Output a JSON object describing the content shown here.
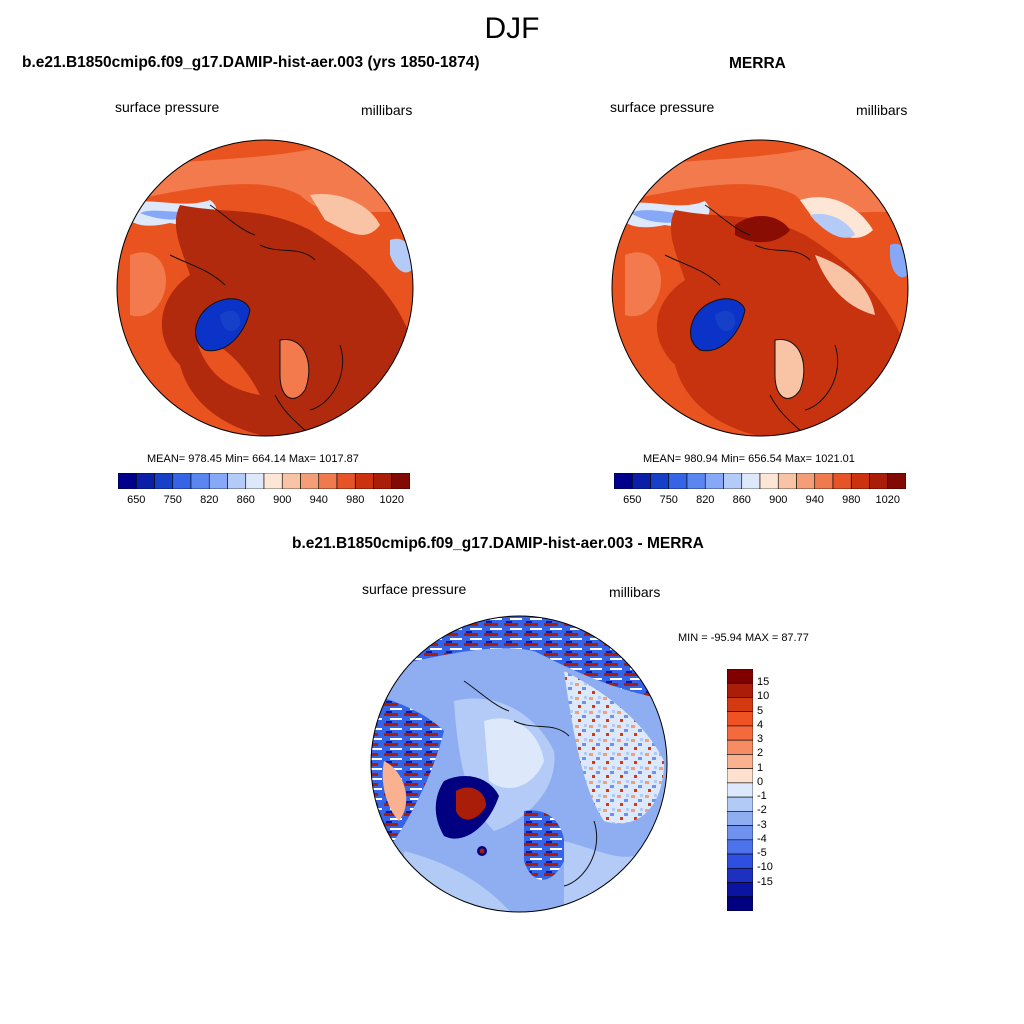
{
  "title": "DJF",
  "units_word": "millibars",
  "variable": "surface pressure",
  "colors": {
    "ocean_high": "#b22a0e",
    "land_mid": "#e8531f",
    "land_light": "#f27a4d",
    "ice_blue": "#0b33c7",
    "coast": "#111111"
  },
  "panels": {
    "left": {
      "title": "b.e21.B1850cmip6.f09_g17.DAMIP-hist-aer.003 (yrs 1850-1874)",
      "left_label": "surface pressure",
      "right_label": "millibars",
      "stats": "MEAN= 978.45  Min= 664.14  Max= 1017.87"
    },
    "right": {
      "title": "MERRA",
      "left_label": "surface pressure",
      "right_label": "millibars",
      "stats": "MEAN= 980.94  Min= 656.54  Max= 1021.01"
    },
    "diff": {
      "title": "b.e21.B1850cmip6.f09_g17.DAMIP-hist-aer.003 - MERRA",
      "left_label": "surface pressure",
      "right_label": "millibars",
      "minmax": "MIN = -95.94 MAX =  87.77"
    }
  },
  "abs_colorbar": {
    "colors": [
      "#00008c",
      "#0a1ea8",
      "#1740c8",
      "#3565e6",
      "#5a86f2",
      "#86a8f6",
      "#b4cbf8",
      "#dde8fb",
      "#fde6d6",
      "#f9c4a6",
      "#f49e78",
      "#ee7a4e",
      "#e55428",
      "#cc3210",
      "#aa1d08",
      "#820a04"
    ],
    "ticks": [
      "650",
      "750",
      "820",
      "860",
      "900",
      "940",
      "980",
      "1020"
    ]
  },
  "diff_colorbar": {
    "colors": [
      "#800000",
      "#aa1d08",
      "#d33a12",
      "#f05224",
      "#f56a3c",
      "#f78c62",
      "#f9b18f",
      "#fde0cd",
      "#dce8fb",
      "#b2caf6",
      "#8faef2",
      "#6e92ee",
      "#4d73ea",
      "#2f4fe0",
      "#1d30c2",
      "#0a14a0",
      "#000080"
    ],
    "ticks": [
      "15",
      "10",
      "5",
      "4",
      "3",
      "2",
      "1",
      "0",
      "-1",
      "-2",
      "-3",
      "-4",
      "-5",
      "-10",
      "-15"
    ]
  }
}
